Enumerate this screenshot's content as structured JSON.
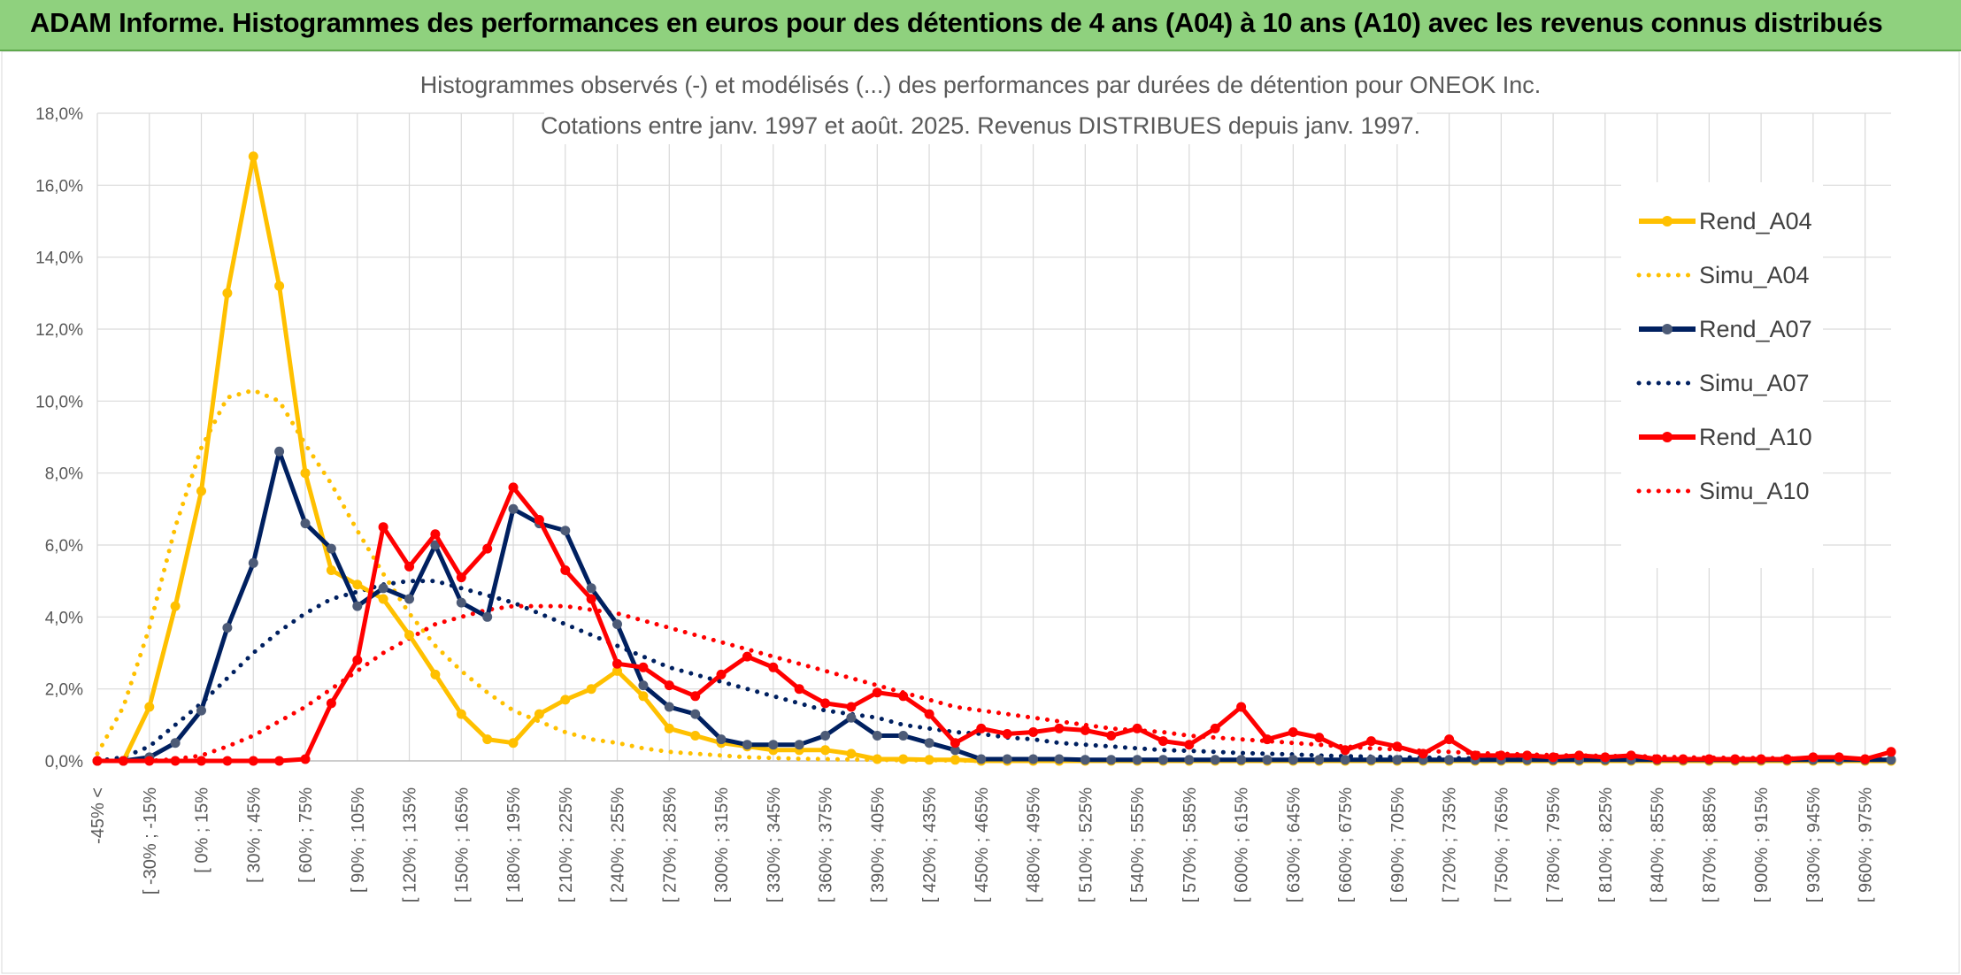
{
  "banner": {
    "title": "ADAM Informe. Histogrammes des performances en euros pour des détentions de 4 ans (A04) à 10 ans (A10) avec les revenus connus distribués"
  },
  "chart_data": {
    "type": "line",
    "title_line1": "Histogrammes observés (-) et modélisés (...) des performances par durées de détention pour ONEOK Inc.",
    "title_line2": "Cotations entre janv. 1997 et août. 2025. Revenus DISTRIBUES depuis janv. 1997.",
    "ylim": [
      0,
      18
    ],
    "y_ticks": [
      0,
      2,
      4,
      6,
      8,
      10,
      12,
      14,
      16,
      18
    ],
    "y_tick_labels": [
      "0,0%",
      "2,0%",
      "4,0%",
      "6,0%",
      "8,0%",
      "10,0%",
      "12,0%",
      "14,0%",
      "16,0%",
      "18,0%"
    ],
    "grid": true,
    "legend_position": "right",
    "x_labels": [
      "-45% <",
      "[ -30% ; -15%",
      "[ 0% ; 15%",
      "[ 30% ; 45%",
      "[ 60% ; 75%",
      "[ 90% ; 105%",
      "[ 120% ; 135%",
      "[ 150% ; 165%",
      "[ 180% ; 195%",
      "[ 210% ; 225%",
      "[ 240% ; 255%",
      "[ 270% ; 285%",
      "[ 300% ; 315%",
      "[ 330% ; 345%",
      "[ 360% ; 375%",
      "[ 390% ; 405%",
      "[ 420% ; 435%",
      "[ 450% ; 465%",
      "[ 480% ; 495%",
      "[ 510% ; 525%",
      "[ 540% ; 555%",
      "[ 570% ; 585%",
      "[ 600% ; 615%",
      "[ 630% ; 645%",
      "[ 660% ; 675%",
      "[ 690% ; 705%",
      "[ 720% ; 735%",
      "[ 750% ; 765%",
      "[ 780% ; 795%",
      "[ 810% ; 825%",
      "[ 840% ; 855%",
      "[ 870% ; 885%",
      "[ 900% ; 915%",
      "[ 930% ; 945%",
      "[ 960% ; 975%"
    ],
    "series": [
      {
        "name": "Rend_A04",
        "style": "solid",
        "color": "#ffc000",
        "values": [
          0,
          0,
          1.5,
          4.3,
          7.5,
          13.0,
          16.8,
          13.2,
          8.0,
          5.3,
          4.9,
          4.5,
          3.5,
          2.4,
          1.3,
          0.6,
          0.5,
          1.3,
          1.7,
          2.0,
          2.5,
          1.8,
          0.9,
          0.7,
          0.5,
          0.4,
          0.3,
          0.3,
          0.3,
          0.2,
          0.05,
          0.05,
          0.03,
          0.03,
          0,
          0,
          0,
          0,
          0,
          0,
          0,
          0,
          0,
          0,
          0,
          0,
          0,
          0,
          0,
          0,
          0,
          0,
          0,
          0,
          0,
          0,
          0,
          0,
          0,
          0,
          0,
          0,
          0,
          0,
          0,
          0,
          0,
          0,
          0,
          0
        ]
      },
      {
        "name": "Simu_A04",
        "style": "dotted",
        "color": "#ffc000",
        "values": [
          0.2,
          1.5,
          3.7,
          6.5,
          8.7,
          10.1,
          10.3,
          10.0,
          8.8,
          7.7,
          6.4,
          5.2,
          4.1,
          3.2,
          2.5,
          1.9,
          1.4,
          1.1,
          0.8,
          0.6,
          0.5,
          0.35,
          0.25,
          0.2,
          0.15,
          0.1,
          0.08,
          0.06,
          0.05,
          0.04,
          0.03,
          0.02,
          0.02,
          0.01,
          0,
          0,
          0,
          0,
          0,
          0,
          0,
          0,
          0,
          0,
          0,
          0,
          0,
          0,
          0,
          0,
          0,
          0,
          0,
          0,
          0,
          0,
          0,
          0,
          0,
          0,
          0,
          0,
          0,
          0,
          0,
          0,
          0,
          0,
          0,
          0
        ]
      },
      {
        "name": "Rend_A07",
        "style": "solid",
        "color": "#002060",
        "values": [
          0,
          0,
          0.1,
          0.5,
          1.4,
          3.7,
          5.5,
          8.6,
          6.6,
          5.9,
          4.3,
          4.8,
          4.5,
          6.0,
          4.4,
          4.0,
          7.0,
          6.6,
          6.4,
          4.8,
          3.8,
          2.1,
          1.5,
          1.3,
          0.6,
          0.45,
          0.45,
          0.45,
          0.7,
          1.2,
          0.7,
          0.7,
          0.5,
          0.3,
          0.05,
          0.05,
          0.05,
          0.05,
          0.03,
          0.03,
          0.03,
          0.03,
          0.03,
          0.03,
          0.03,
          0.03,
          0.03,
          0.03,
          0.03,
          0.03,
          0.03,
          0.03,
          0.03,
          0.03,
          0.03,
          0.03,
          0.03,
          0.03,
          0.03,
          0.03,
          0.03,
          0.03,
          0.03,
          0.03,
          0.03,
          0.03,
          0.03,
          0.03,
          0.03,
          0.03
        ]
      },
      {
        "name": "Simu_A07",
        "style": "dotted",
        "color": "#002060",
        "values": [
          0,
          0.1,
          0.4,
          1.0,
          1.6,
          2.3,
          3.0,
          3.6,
          4.1,
          4.5,
          4.7,
          4.9,
          5.0,
          5.0,
          4.8,
          4.6,
          4.4,
          4.1,
          3.8,
          3.5,
          3.2,
          2.9,
          2.6,
          2.4,
          2.2,
          2.0,
          1.8,
          1.6,
          1.4,
          1.3,
          1.2,
          1.0,
          0.9,
          0.8,
          0.75,
          0.65,
          0.6,
          0.5,
          0.45,
          0.4,
          0.35,
          0.3,
          0.28,
          0.25,
          0.22,
          0.2,
          0.18,
          0.15,
          0.13,
          0.12,
          0.1,
          0.09,
          0.08,
          0.07,
          0.06,
          0.05,
          0.05,
          0.04,
          0.04,
          0.03,
          0.03,
          0.03,
          0.02,
          0.02,
          0.02,
          0.02,
          0.01,
          0.01,
          0.01,
          0.01
        ]
      },
      {
        "name": "Rend_A10",
        "style": "solid",
        "color": "#ff0000",
        "values": [
          0,
          0,
          0,
          0,
          0,
          0,
          0,
          0,
          0.05,
          1.6,
          2.8,
          6.5,
          5.4,
          6.3,
          5.1,
          5.9,
          7.6,
          6.7,
          5.3,
          4.5,
          2.7,
          2.6,
          2.1,
          1.8,
          2.4,
          2.9,
          2.6,
          2.0,
          1.6,
          1.5,
          1.9,
          1.8,
          1.3,
          0.5,
          0.9,
          0.75,
          0.8,
          0.9,
          0.85,
          0.7,
          0.9,
          0.55,
          0.45,
          0.9,
          1.5,
          0.6,
          0.8,
          0.65,
          0.3,
          0.55,
          0.4,
          0.2,
          0.6,
          0.15,
          0.15,
          0.15,
          0.1,
          0.15,
          0.1,
          0.15,
          0.05,
          0.05,
          0.05,
          0.05,
          0.05,
          0.05,
          0.1,
          0.1,
          0.05,
          0.25
        ]
      },
      {
        "name": "Simu_A10",
        "style": "dotted",
        "color": "#ff0000",
        "values": [
          0,
          0,
          0,
          0.05,
          0.15,
          0.4,
          0.7,
          1.1,
          1.5,
          2.0,
          2.5,
          3.0,
          3.4,
          3.8,
          4.0,
          4.2,
          4.3,
          4.3,
          4.3,
          4.2,
          4.1,
          3.9,
          3.7,
          3.5,
          3.3,
          3.1,
          2.9,
          2.7,
          2.5,
          2.3,
          2.1,
          1.9,
          1.7,
          1.5,
          1.4,
          1.3,
          1.2,
          1.1,
          1.0,
          0.9,
          0.85,
          0.8,
          0.7,
          0.65,
          0.6,
          0.55,
          0.5,
          0.45,
          0.4,
          0.35,
          0.32,
          0.28,
          0.25,
          0.22,
          0.2,
          0.18,
          0.16,
          0.15,
          0.14,
          0.13,
          0.12,
          0.1,
          0.09,
          0.08,
          0.08,
          0.07,
          0.06,
          0.05,
          0.05,
          0.05
        ]
      }
    ]
  }
}
